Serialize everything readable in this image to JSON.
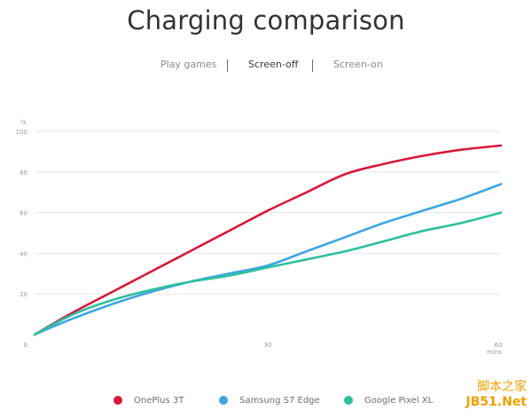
{
  "title": "Charging comparison",
  "tabs": [
    {
      "label": "Play games",
      "active": false
    },
    {
      "label": "Screen-off",
      "active": true
    },
    {
      "label": "Screen-on",
      "active": false
    }
  ],
  "watermark": {
    "line1": "脚本之家",
    "line2": "JB51.Net"
  },
  "chart_data": {
    "type": "line",
    "title": "Charging comparison",
    "ylabel": "%",
    "xlabel": "mins",
    "xlim": [
      0,
      60
    ],
    "ylim": [
      0,
      100
    ],
    "x_ticks": [
      0,
      30,
      60
    ],
    "y_ticks": [
      0,
      20,
      40,
      60,
      80,
      100
    ],
    "grid": "horizontal",
    "legend_position": "bottom",
    "series": [
      {
        "name": "OnePlus 3T",
        "color": "#d7193a",
        "points": [
          [
            0,
            0
          ],
          [
            5,
            11
          ],
          [
            10,
            21
          ],
          [
            15,
            31
          ],
          [
            20,
            41
          ],
          [
            25,
            51
          ],
          [
            30,
            61
          ],
          [
            35,
            70
          ],
          [
            40,
            79
          ],
          [
            45,
            84
          ],
          [
            50,
            88
          ],
          [
            55,
            91
          ],
          [
            60,
            93
          ]
        ]
      },
      {
        "name": "Samsung S7 Edge",
        "color": "#3da6e0",
        "points": [
          [
            0,
            0
          ],
          [
            5,
            8
          ],
          [
            10,
            15
          ],
          [
            15,
            21
          ],
          [
            20,
            26
          ],
          [
            25,
            30
          ],
          [
            30,
            34
          ],
          [
            35,
            41
          ],
          [
            40,
            48
          ],
          [
            45,
            55
          ],
          [
            50,
            61
          ],
          [
            55,
            67
          ],
          [
            60,
            74
          ]
        ]
      },
      {
        "name": "Google Pixel XL",
        "color": "#2ebf9f",
        "points": [
          [
            0,
            0
          ],
          [
            5,
            10
          ],
          [
            10,
            17
          ],
          [
            15,
            22
          ],
          [
            20,
            26
          ],
          [
            25,
            29
          ],
          [
            30,
            33
          ],
          [
            35,
            37
          ],
          [
            40,
            41
          ],
          [
            45,
            46
          ],
          [
            50,
            51
          ],
          [
            55,
            55
          ],
          [
            60,
            60
          ]
        ]
      }
    ]
  }
}
